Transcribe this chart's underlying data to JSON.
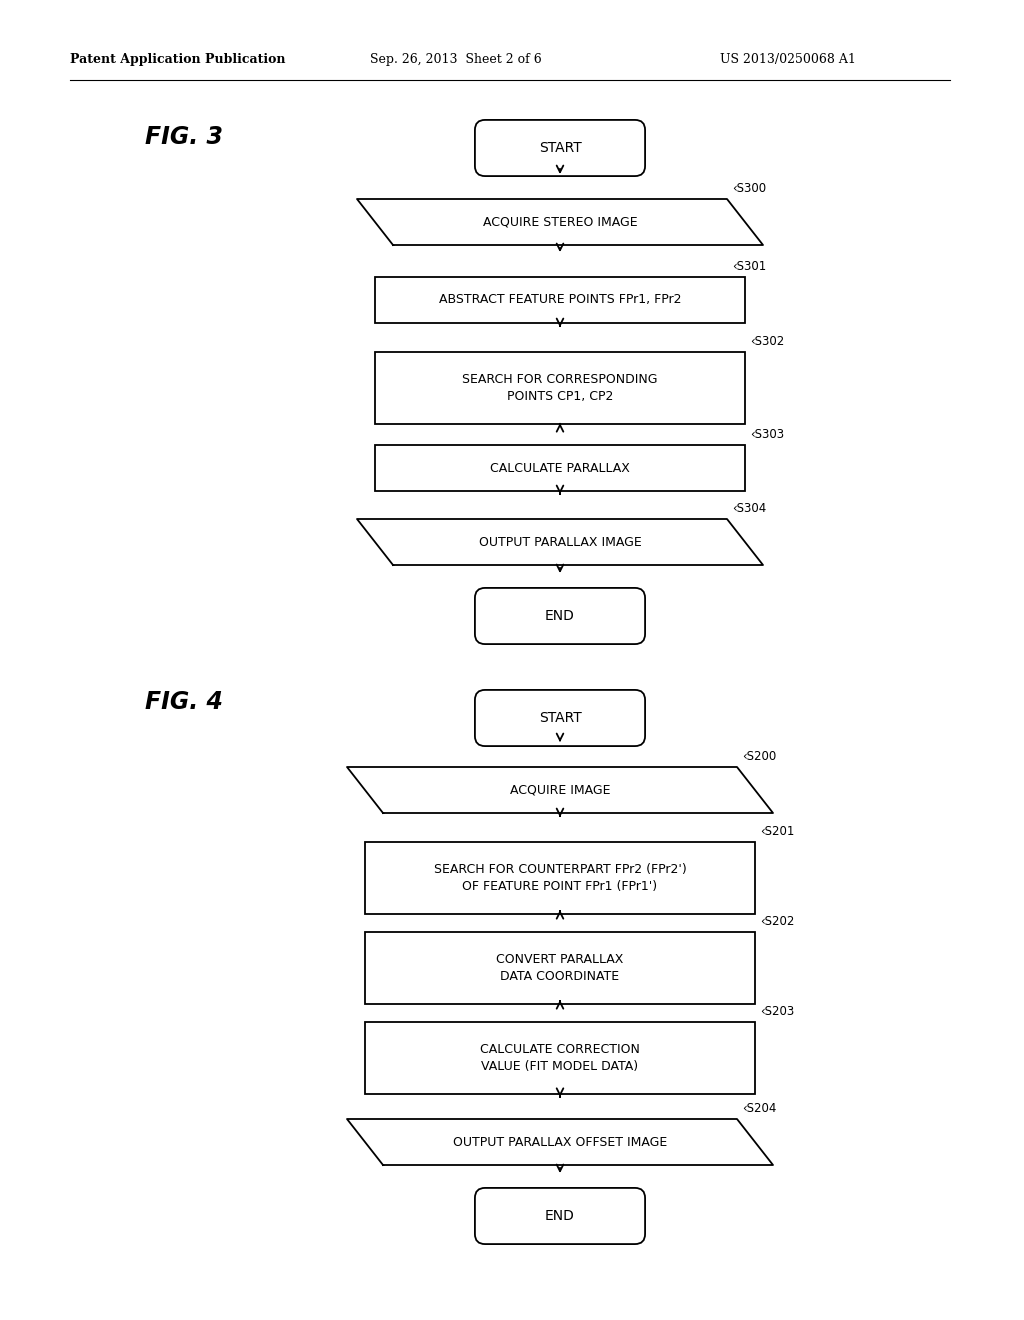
{
  "header_left": "Patent Application Publication",
  "header_center": "Sep. 26, 2013  Sheet 2 of 6",
  "header_right": "US 2013/0250068 A1",
  "fig3_label": "FIG. 3",
  "fig4_label": "FIG. 4",
  "bg_color": "#ffffff"
}
